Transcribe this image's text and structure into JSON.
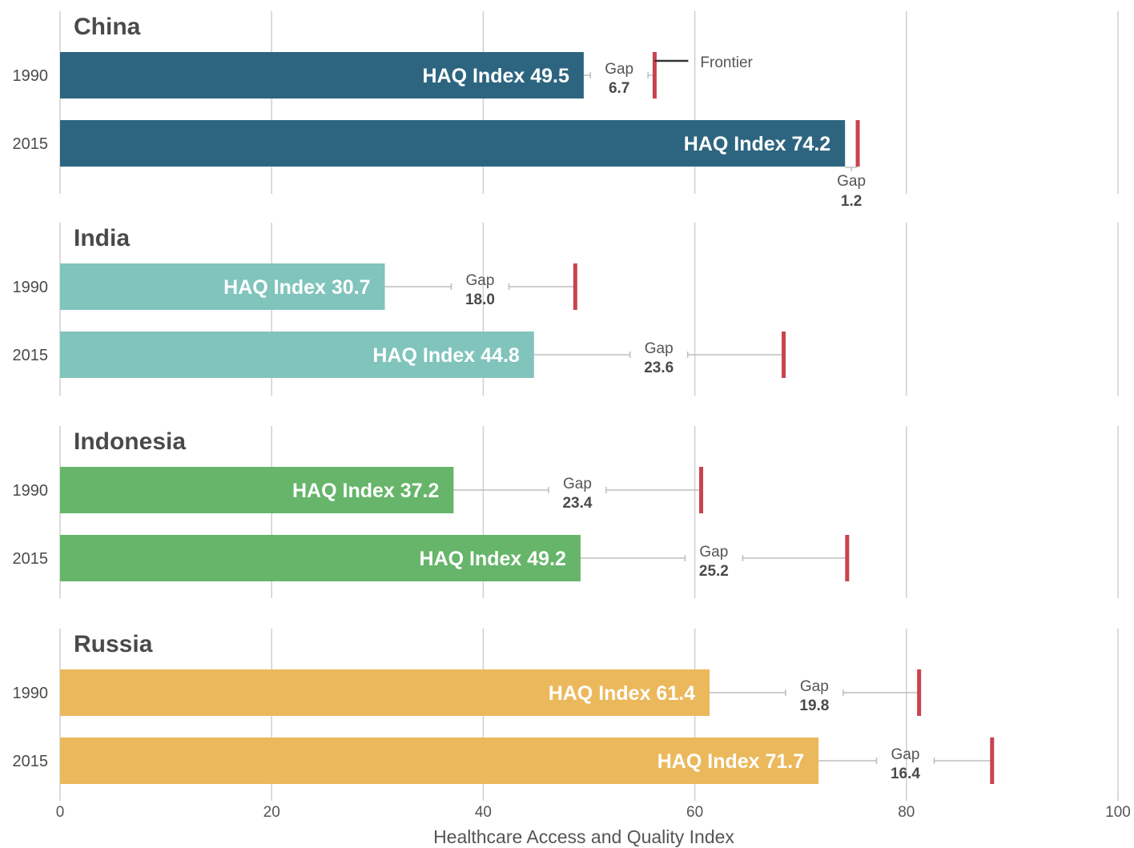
{
  "chart_data": {
    "type": "bar",
    "xlabel": "Healthcare Access and Quality Index",
    "xlim": [
      0,
      100
    ],
    "xticks": [
      "0",
      "20",
      "40",
      "60",
      "80",
      "100"
    ],
    "bar_label_prefix": "HAQ Index",
    "gap_word": "Gap",
    "frontier_label": "Frontier",
    "colors": {
      "China": "#2d6580",
      "India": "#80c4bc",
      "Indonesia": "#66b56a",
      "Russia": "#ebb85c",
      "frontier": "#c8434e"
    },
    "panels": [
      {
        "country": "China",
        "rows": [
          {
            "year": "1990",
            "value": 49.5,
            "value_label": "49.5",
            "gap": 6.7,
            "gap_label": "6.7",
            "frontier": 56.2
          },
          {
            "year": "2015",
            "value": 74.2,
            "value_label": "74.2",
            "gap": 1.2,
            "gap_label": "1.2",
            "frontier": 75.4
          }
        ]
      },
      {
        "country": "India",
        "rows": [
          {
            "year": "1990",
            "value": 30.7,
            "value_label": "30.7",
            "gap": 18.0,
            "gap_label": "18.0",
            "frontier": 48.7
          },
          {
            "year": "2015",
            "value": 44.8,
            "value_label": "44.8",
            "gap": 23.6,
            "gap_label": "23.6",
            "frontier": 68.4
          }
        ]
      },
      {
        "country": "Indonesia",
        "rows": [
          {
            "year": "1990",
            "value": 37.2,
            "value_label": "37.2",
            "gap": 23.4,
            "gap_label": "23.4",
            "frontier": 60.6
          },
          {
            "year": "2015",
            "value": 49.2,
            "value_label": "49.2",
            "gap": 25.2,
            "gap_label": "25.2",
            "frontier": 74.4
          }
        ]
      },
      {
        "country": "Russia",
        "rows": [
          {
            "year": "1990",
            "value": 61.4,
            "value_label": "61.4",
            "gap": 19.8,
            "gap_label": "19.8",
            "frontier": 81.2
          },
          {
            "year": "2015",
            "value": 71.7,
            "value_label": "71.7",
            "gap": 16.4,
            "gap_label": "16.4",
            "frontier": 88.1
          }
        ]
      }
    ]
  }
}
